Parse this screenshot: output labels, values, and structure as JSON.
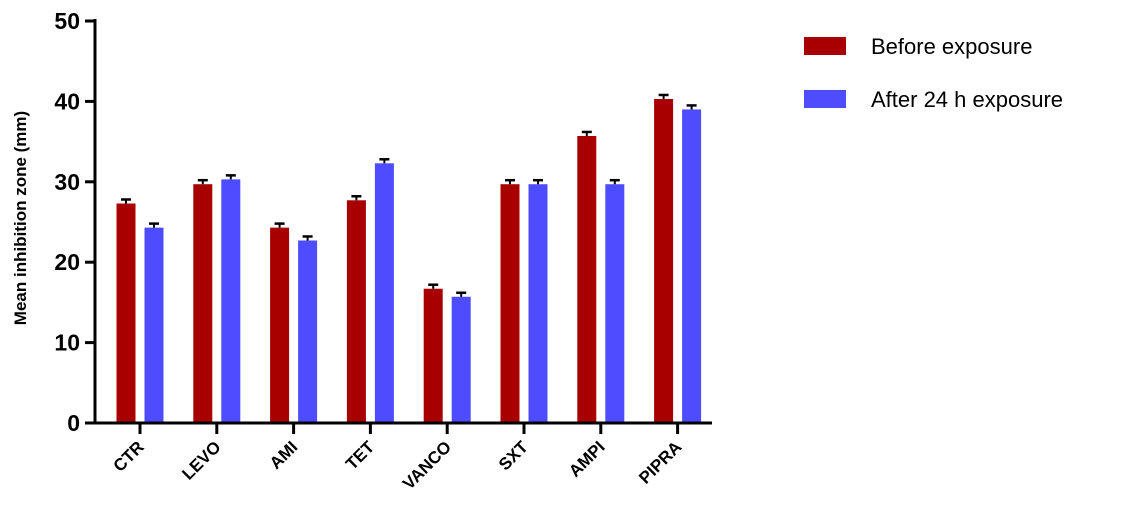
{
  "chart_data": {
    "type": "bar",
    "title": "",
    "xlabel": "",
    "ylabel": "Mean inhibition zone (mm)",
    "ylim": [
      0,
      50
    ],
    "yticks": [
      0,
      10,
      20,
      30,
      40,
      50
    ],
    "legend_position": "top-right",
    "grid": false,
    "error_bars": true,
    "categories": [
      "CTR",
      "LEVO",
      "AMI",
      "TET",
      "VANCO",
      "SXT",
      "AMPI",
      "PIPRA"
    ],
    "series": [
      {
        "name": "Before exposure",
        "color": "#a80000",
        "values": [
          27.3,
          29.7,
          24.3,
          27.7,
          16.7,
          29.7,
          35.7,
          40.3
        ],
        "errors": [
          0.5,
          0.5,
          0.5,
          0.5,
          0.5,
          0.5,
          0.5,
          0.5
        ]
      },
      {
        "name": "After 24 h exposure",
        "color": "#4d4dff",
        "values": [
          24.3,
          30.3,
          22.7,
          32.3,
          15.7,
          29.7,
          29.7,
          39.0
        ],
        "errors": [
          0.5,
          0.5,
          0.5,
          0.5,
          0.5,
          0.5,
          0.5,
          0.5
        ]
      }
    ]
  }
}
